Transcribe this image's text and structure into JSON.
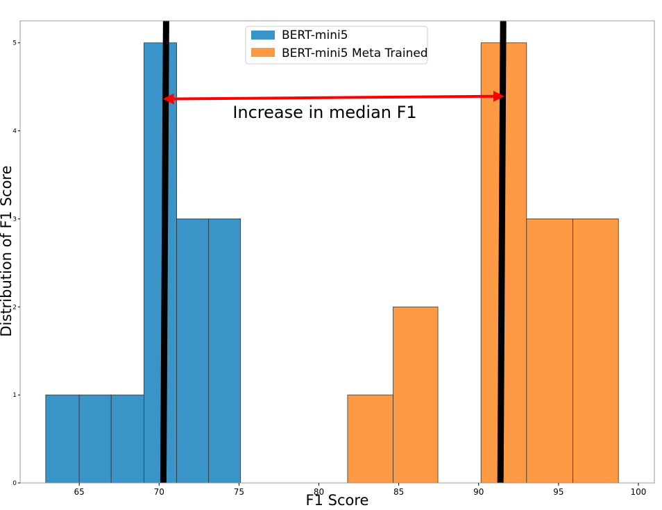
{
  "chart_data": {
    "type": "histogram",
    "title": "",
    "xlabel": "F1 Score",
    "ylabel": "Distribution of F1 Score",
    "xlim": [
      61.3,
      101.0
    ],
    "ylim": [
      0,
      5.25
    ],
    "xticks": [
      65,
      70,
      75,
      80,
      85,
      90,
      95,
      100
    ],
    "yticks": [
      0,
      1,
      2,
      3,
      4,
      5
    ],
    "grid": false,
    "legend_position": "top-center",
    "series": [
      {
        "name": "BERT-mini5",
        "color": "#3a94c8",
        "bins": [
          {
            "x0": 62.9,
            "x1": 65.0,
            "count": 1
          },
          {
            "x0": 65.0,
            "x1": 67.0,
            "count": 1
          },
          {
            "x0": 67.0,
            "x1": 69.05,
            "count": 1
          },
          {
            "x0": 69.05,
            "x1": 71.1,
            "count": 5
          },
          {
            "x0": 71.1,
            "x1": 73.1,
            "count": 3
          },
          {
            "x0": 73.1,
            "x1": 75.1,
            "count": 3
          }
        ],
        "median": 70.2
      },
      {
        "name": "BERT-mini5 Meta Trained",
        "color": "#fd9a43",
        "bins": [
          {
            "x0": 81.8,
            "x1": 84.65,
            "count": 1
          },
          {
            "x0": 84.65,
            "x1": 87.45,
            "count": 2
          },
          {
            "x0": 90.15,
            "x1": 93.0,
            "count": 5
          },
          {
            "x0": 93.0,
            "x1": 95.9,
            "count": 3
          },
          {
            "x0": 95.9,
            "x1": 98.75,
            "count": 3
          }
        ],
        "median": 91.3
      }
    ],
    "annotations": [
      {
        "text": "Increase in median F1",
        "x_from": 70.2,
        "x_to": 91.3,
        "y": 4.37
      }
    ]
  }
}
